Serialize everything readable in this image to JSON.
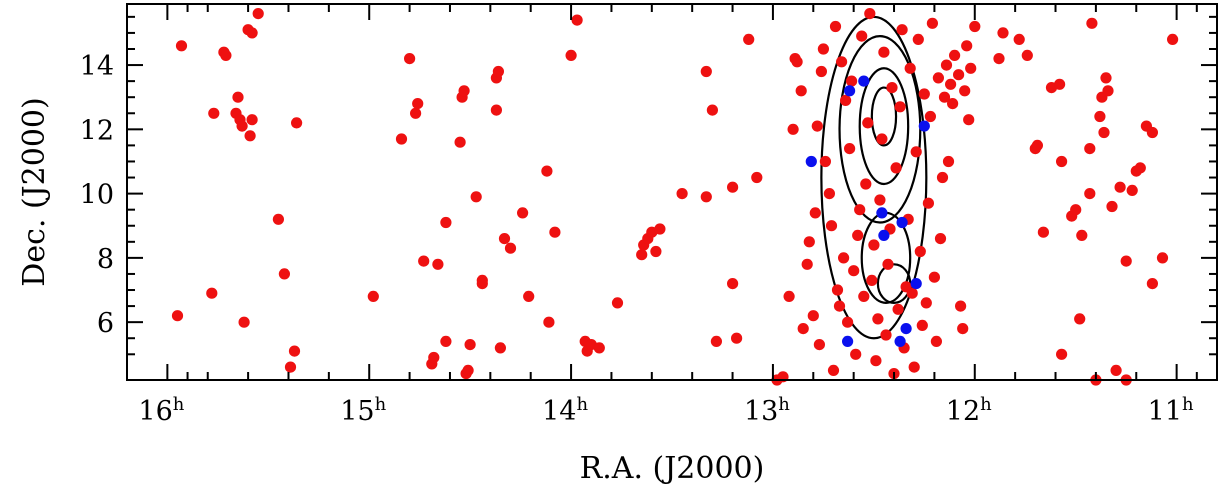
{
  "chart_data": {
    "type": "scatter",
    "title": "",
    "xlabel": "R.A. (J2000)",
    "ylabel": "Dec. (J2000)",
    "x_unit_suffix": "h",
    "xlim": [
      16.2,
      10.8
    ],
    "ylim": [
      4.2,
      15.9
    ],
    "x_ticks": [
      16,
      15,
      14,
      13,
      12,
      11
    ],
    "x_tick_labels": [
      "16",
      "15",
      "14",
      "13",
      "12",
      "11"
    ],
    "y_ticks": [
      6,
      8,
      10,
      12,
      14
    ],
    "y_tick_labels": [
      "6",
      "8",
      "10",
      "12",
      "14"
    ],
    "grid": false,
    "legend": "none",
    "colors": {
      "red": "#ee1111",
      "blue": "#0a10ee",
      "contour": "#000000"
    },
    "series": [
      {
        "color": "#ee1111",
        "points": [
          [
            15.93,
            14.6
          ],
          [
            15.95,
            6.2
          ],
          [
            15.78,
            6.9
          ],
          [
            15.77,
            12.5
          ],
          [
            15.72,
            14.4
          ],
          [
            15.71,
            14.3
          ],
          [
            15.65,
            13.0
          ],
          [
            15.66,
            12.5
          ],
          [
            15.64,
            12.3
          ],
          [
            15.62,
            6.0
          ],
          [
            15.63,
            12.1
          ],
          [
            15.59,
            11.8
          ],
          [
            15.58,
            12.3
          ],
          [
            15.6,
            15.1
          ],
          [
            15.58,
            15.0
          ],
          [
            15.55,
            15.6
          ],
          [
            15.45,
            9.2
          ],
          [
            15.42,
            7.5
          ],
          [
            15.39,
            4.6
          ],
          [
            15.37,
            5.1
          ],
          [
            15.36,
            12.2
          ],
          [
            14.98,
            6.8
          ],
          [
            14.8,
            14.2
          ],
          [
            14.84,
            11.7
          ],
          [
            14.77,
            12.5
          ],
          [
            14.76,
            12.8
          ],
          [
            14.73,
            7.9
          ],
          [
            14.69,
            4.7
          ],
          [
            14.68,
            4.9
          ],
          [
            14.66,
            7.8
          ],
          [
            14.62,
            9.1
          ],
          [
            14.62,
            5.4
          ],
          [
            14.55,
            11.6
          ],
          [
            14.54,
            13.0
          ],
          [
            14.53,
            13.2
          ],
          [
            14.52,
            4.4
          ],
          [
            14.51,
            4.5
          ],
          [
            14.5,
            5.3
          ],
          [
            14.47,
            9.9
          ],
          [
            14.44,
            7.3
          ],
          [
            14.44,
            7.2
          ],
          [
            14.37,
            12.6
          ],
          [
            14.37,
            13.6
          ],
          [
            14.36,
            13.8
          ],
          [
            14.35,
            5.2
          ],
          [
            14.33,
            8.6
          ],
          [
            14.3,
            8.3
          ],
          [
            14.24,
            9.4
          ],
          [
            14.21,
            6.8
          ],
          [
            14.12,
            10.7
          ],
          [
            14.11,
            6.0
          ],
          [
            14.08,
            8.8
          ],
          [
            14.0,
            14.3
          ],
          [
            13.97,
            15.4
          ],
          [
            13.93,
            5.4
          ],
          [
            13.92,
            5.1
          ],
          [
            13.9,
            5.3
          ],
          [
            13.86,
            5.2
          ],
          [
            13.77,
            6.6
          ],
          [
            13.65,
            8.1
          ],
          [
            13.64,
            8.4
          ],
          [
            13.62,
            8.6
          ],
          [
            13.6,
            8.8
          ],
          [
            13.58,
            8.2
          ],
          [
            13.56,
            8.9
          ],
          [
            13.45,
            10.0
          ],
          [
            13.33,
            13.8
          ],
          [
            13.33,
            9.9
          ],
          [
            13.28,
            5.4
          ],
          [
            13.3,
            12.6
          ],
          [
            13.2,
            10.2
          ],
          [
            13.2,
            7.2
          ],
          [
            13.18,
            5.5
          ],
          [
            13.12,
            14.8
          ],
          [
            13.08,
            10.5
          ],
          [
            12.98,
            4.2
          ],
          [
            12.95,
            4.3
          ],
          [
            12.92,
            6.8
          ],
          [
            12.9,
            12.0
          ],
          [
            12.89,
            14.2
          ],
          [
            12.88,
            14.1
          ],
          [
            12.86,
            13.2
          ],
          [
            12.85,
            5.8
          ],
          [
            12.83,
            7.8
          ],
          [
            12.82,
            8.5
          ],
          [
            12.8,
            6.2
          ],
          [
            12.79,
            9.4
          ],
          [
            12.78,
            12.1
          ],
          [
            12.77,
            5.3
          ],
          [
            12.76,
            13.8
          ],
          [
            12.75,
            14.5
          ],
          [
            12.74,
            11.0
          ],
          [
            12.72,
            10.0
          ],
          [
            12.71,
            9.0
          ],
          [
            12.7,
            4.5
          ],
          [
            12.69,
            15.2
          ],
          [
            12.68,
            7.0
          ],
          [
            12.67,
            6.5
          ],
          [
            12.66,
            14.1
          ],
          [
            12.65,
            8.0
          ],
          [
            12.64,
            12.9
          ],
          [
            12.63,
            6.0
          ],
          [
            12.62,
            11.4
          ],
          [
            12.61,
            13.5
          ],
          [
            12.6,
            7.6
          ],
          [
            12.59,
            5.0
          ],
          [
            12.58,
            8.7
          ],
          [
            12.57,
            9.5
          ],
          [
            12.56,
            14.9
          ],
          [
            12.55,
            6.8
          ],
          [
            12.54,
            10.3
          ],
          [
            12.53,
            12.2
          ],
          [
            12.52,
            15.6
          ],
          [
            12.51,
            7.3
          ],
          [
            12.5,
            8.4
          ],
          [
            12.49,
            4.8
          ],
          [
            12.48,
            6.1
          ],
          [
            12.47,
            9.8
          ],
          [
            12.46,
            11.7
          ],
          [
            12.45,
            14.4
          ],
          [
            12.44,
            5.6
          ],
          [
            12.43,
            7.8
          ],
          [
            12.42,
            8.9
          ],
          [
            12.41,
            13.3
          ],
          [
            12.4,
            4.4
          ],
          [
            12.39,
            10.8
          ],
          [
            12.38,
            6.4
          ],
          [
            12.37,
            12.7
          ],
          [
            12.36,
            15.1
          ],
          [
            12.35,
            5.2
          ],
          [
            12.34,
            7.1
          ],
          [
            12.33,
            9.2
          ],
          [
            12.32,
            13.9
          ],
          [
            12.31,
            6.9
          ],
          [
            12.3,
            4.6
          ],
          [
            12.29,
            11.3
          ],
          [
            12.28,
            14.8
          ],
          [
            12.27,
            8.2
          ],
          [
            12.26,
            5.9
          ],
          [
            12.25,
            13.1
          ],
          [
            12.24,
            6.6
          ],
          [
            12.23,
            9.7
          ],
          [
            12.22,
            12.4
          ],
          [
            12.21,
            15.3
          ],
          [
            12.2,
            7.4
          ],
          [
            12.19,
            5.4
          ],
          [
            12.18,
            13.6
          ],
          [
            12.17,
            8.6
          ],
          [
            12.16,
            10.5
          ],
          [
            12.15,
            13.0
          ],
          [
            12.14,
            14.0
          ],
          [
            12.13,
            11.0
          ],
          [
            12.12,
            13.4
          ],
          [
            12.11,
            12.8
          ],
          [
            12.1,
            14.3
          ],
          [
            12.08,
            13.7
          ],
          [
            12.07,
            6.5
          ],
          [
            12.06,
            5.8
          ],
          [
            12.05,
            13.2
          ],
          [
            12.04,
            14.6
          ],
          [
            12.03,
            12.3
          ],
          [
            12.02,
            13.9
          ],
          [
            12.0,
            15.2
          ],
          [
            11.88,
            14.2
          ],
          [
            11.86,
            15.0
          ],
          [
            11.78,
            14.8
          ],
          [
            11.74,
            14.3
          ],
          [
            11.7,
            11.4
          ],
          [
            11.69,
            11.5
          ],
          [
            11.66,
            8.8
          ],
          [
            11.62,
            13.3
          ],
          [
            11.58,
            13.4
          ],
          [
            11.57,
            11.0
          ],
          [
            11.57,
            5.0
          ],
          [
            11.52,
            9.3
          ],
          [
            11.5,
            9.5
          ],
          [
            11.48,
            6.1
          ],
          [
            11.47,
            8.7
          ],
          [
            11.43,
            10.0
          ],
          [
            11.43,
            11.4
          ],
          [
            11.42,
            15.3
          ],
          [
            11.4,
            4.2
          ],
          [
            11.38,
            12.4
          ],
          [
            11.37,
            13.0
          ],
          [
            11.36,
            11.9
          ],
          [
            11.35,
            13.6
          ],
          [
            11.34,
            13.2
          ],
          [
            11.32,
            9.6
          ],
          [
            11.3,
            4.5
          ],
          [
            11.28,
            10.2
          ],
          [
            11.25,
            4.2
          ],
          [
            11.25,
            7.9
          ],
          [
            11.22,
            10.1
          ],
          [
            11.2,
            10.7
          ],
          [
            11.18,
            10.8
          ],
          [
            11.15,
            12.1
          ],
          [
            11.12,
            7.2
          ],
          [
            11.12,
            11.9
          ],
          [
            11.07,
            8.0
          ],
          [
            11.02,
            14.8
          ]
        ]
      },
      {
        "color": "#0a10ee",
        "points": [
          [
            12.81,
            11.0
          ],
          [
            12.62,
            13.2
          ],
          [
            12.55,
            13.5
          ],
          [
            12.46,
            9.4
          ],
          [
            12.45,
            8.7
          ],
          [
            12.36,
            9.1
          ],
          [
            12.29,
            7.2
          ],
          [
            12.25,
            12.1
          ],
          [
            12.34,
            5.8
          ],
          [
            12.37,
            5.4
          ],
          [
            12.63,
            5.4
          ]
        ]
      }
    ]
  }
}
